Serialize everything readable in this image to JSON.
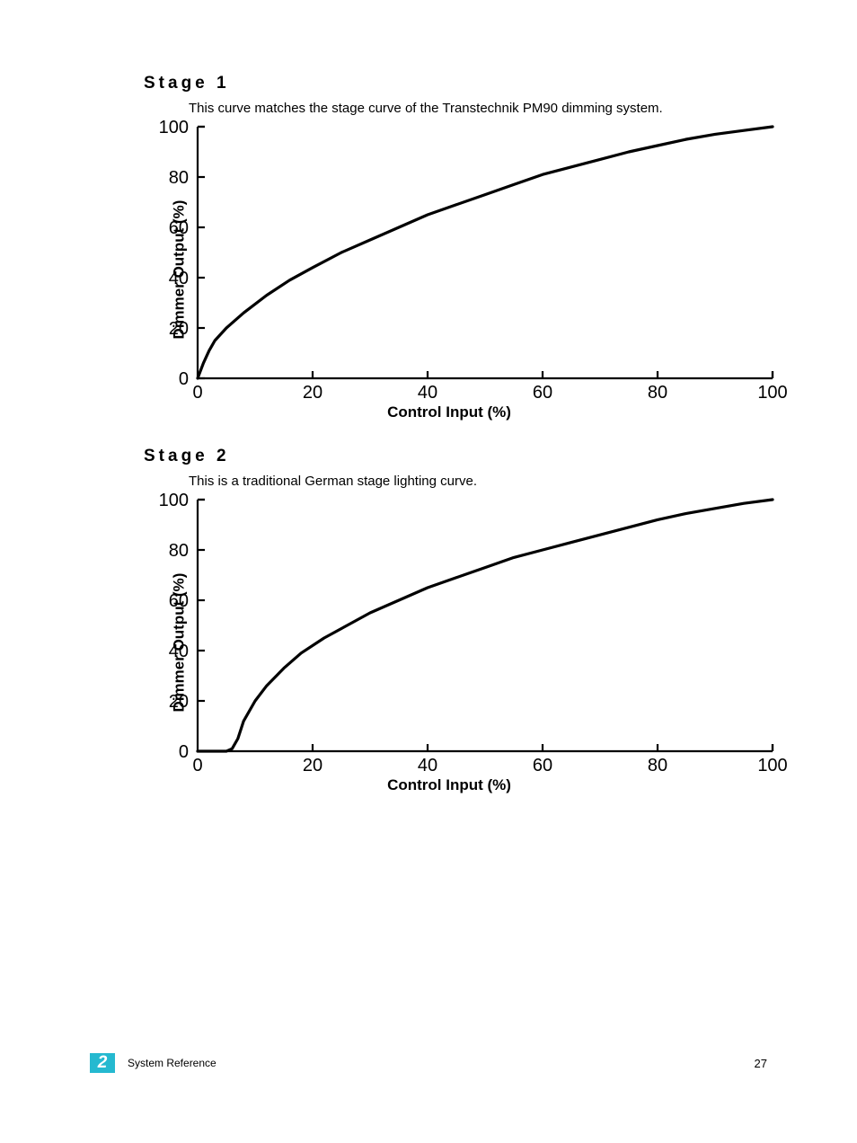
{
  "stage1": {
    "heading": "Stage 1",
    "description": "This curve matches the stage curve of the Transtechnik PM90 dimming system.",
    "chart": {
      "type": "line",
      "xlabel": "Control Input (%)",
      "ylabel": "Dimmer Output (%)",
      "xlim": [
        0,
        100
      ],
      "ylim": [
        0,
        100
      ],
      "xtick_step": 20,
      "ytick_step": 20,
      "xtick_labels": [
        "0",
        "20",
        "40",
        "60",
        "80",
        "100"
      ],
      "ytick_labels": [
        "0",
        "20",
        "40",
        "60",
        "80",
        "100"
      ],
      "line_color": "#000000",
      "line_width": 3.2,
      "background_color": "#ffffff",
      "axis_color": "#000000",
      "axis_width": 2.2,
      "tick_length": 8,
      "tick_fontsize": 20,
      "label_fontsize": 17,
      "data": [
        {
          "x": 0,
          "y": 0
        },
        {
          "x": 1,
          "y": 6
        },
        {
          "x": 2,
          "y": 11
        },
        {
          "x": 3,
          "y": 15
        },
        {
          "x": 5,
          "y": 20
        },
        {
          "x": 8,
          "y": 26
        },
        {
          "x": 12,
          "y": 33
        },
        {
          "x": 16,
          "y": 39
        },
        {
          "x": 20,
          "y": 44
        },
        {
          "x": 25,
          "y": 50
        },
        {
          "x": 30,
          "y": 55
        },
        {
          "x": 35,
          "y": 60
        },
        {
          "x": 40,
          "y": 65
        },
        {
          "x": 45,
          "y": 69
        },
        {
          "x": 50,
          "y": 73
        },
        {
          "x": 55,
          "y": 77
        },
        {
          "x": 60,
          "y": 81
        },
        {
          "x": 65,
          "y": 84
        },
        {
          "x": 70,
          "y": 87
        },
        {
          "x": 75,
          "y": 90
        },
        {
          "x": 80,
          "y": 92.5
        },
        {
          "x": 85,
          "y": 95
        },
        {
          "x": 90,
          "y": 97
        },
        {
          "x": 95,
          "y": 98.5
        },
        {
          "x": 100,
          "y": 100
        }
      ]
    }
  },
  "stage2": {
    "heading": "Stage 2",
    "description": "This is a traditional German stage lighting curve.",
    "chart": {
      "type": "line",
      "xlabel": "Control Input (%)",
      "ylabel": "Dimmer Output (%)",
      "xlim": [
        0,
        100
      ],
      "ylim": [
        0,
        100
      ],
      "xtick_step": 20,
      "ytick_step": 20,
      "xtick_labels": [
        "0",
        "20",
        "40",
        "60",
        "80",
        "100"
      ],
      "ytick_labels": [
        "0",
        "20",
        "40",
        "60",
        "80",
        "100"
      ],
      "line_color": "#000000",
      "line_width": 3.2,
      "background_color": "#ffffff",
      "axis_color": "#000000",
      "axis_width": 2.2,
      "tick_length": 8,
      "tick_fontsize": 20,
      "label_fontsize": 17,
      "data": [
        {
          "x": 0,
          "y": 0
        },
        {
          "x": 5,
          "y": 0
        },
        {
          "x": 6,
          "y": 1
        },
        {
          "x": 7,
          "y": 5
        },
        {
          "x": 8,
          "y": 12
        },
        {
          "x": 10,
          "y": 20
        },
        {
          "x": 12,
          "y": 26
        },
        {
          "x": 15,
          "y": 33
        },
        {
          "x": 18,
          "y": 39
        },
        {
          "x": 22,
          "y": 45
        },
        {
          "x": 26,
          "y": 50
        },
        {
          "x": 30,
          "y": 55
        },
        {
          "x": 35,
          "y": 60
        },
        {
          "x": 40,
          "y": 65
        },
        {
          "x": 45,
          "y": 69
        },
        {
          "x": 50,
          "y": 73
        },
        {
          "x": 55,
          "y": 77
        },
        {
          "x": 60,
          "y": 80
        },
        {
          "x": 65,
          "y": 83
        },
        {
          "x": 70,
          "y": 86
        },
        {
          "x": 75,
          "y": 89
        },
        {
          "x": 80,
          "y": 92
        },
        {
          "x": 85,
          "y": 94.5
        },
        {
          "x": 90,
          "y": 96.5
        },
        {
          "x": 95,
          "y": 98.5
        },
        {
          "x": 100,
          "y": 100
        }
      ]
    }
  },
  "footer": {
    "chapter_number": "2",
    "chapter_box_color": "#25b9d0",
    "title": "System Reference",
    "page_number": "27"
  }
}
